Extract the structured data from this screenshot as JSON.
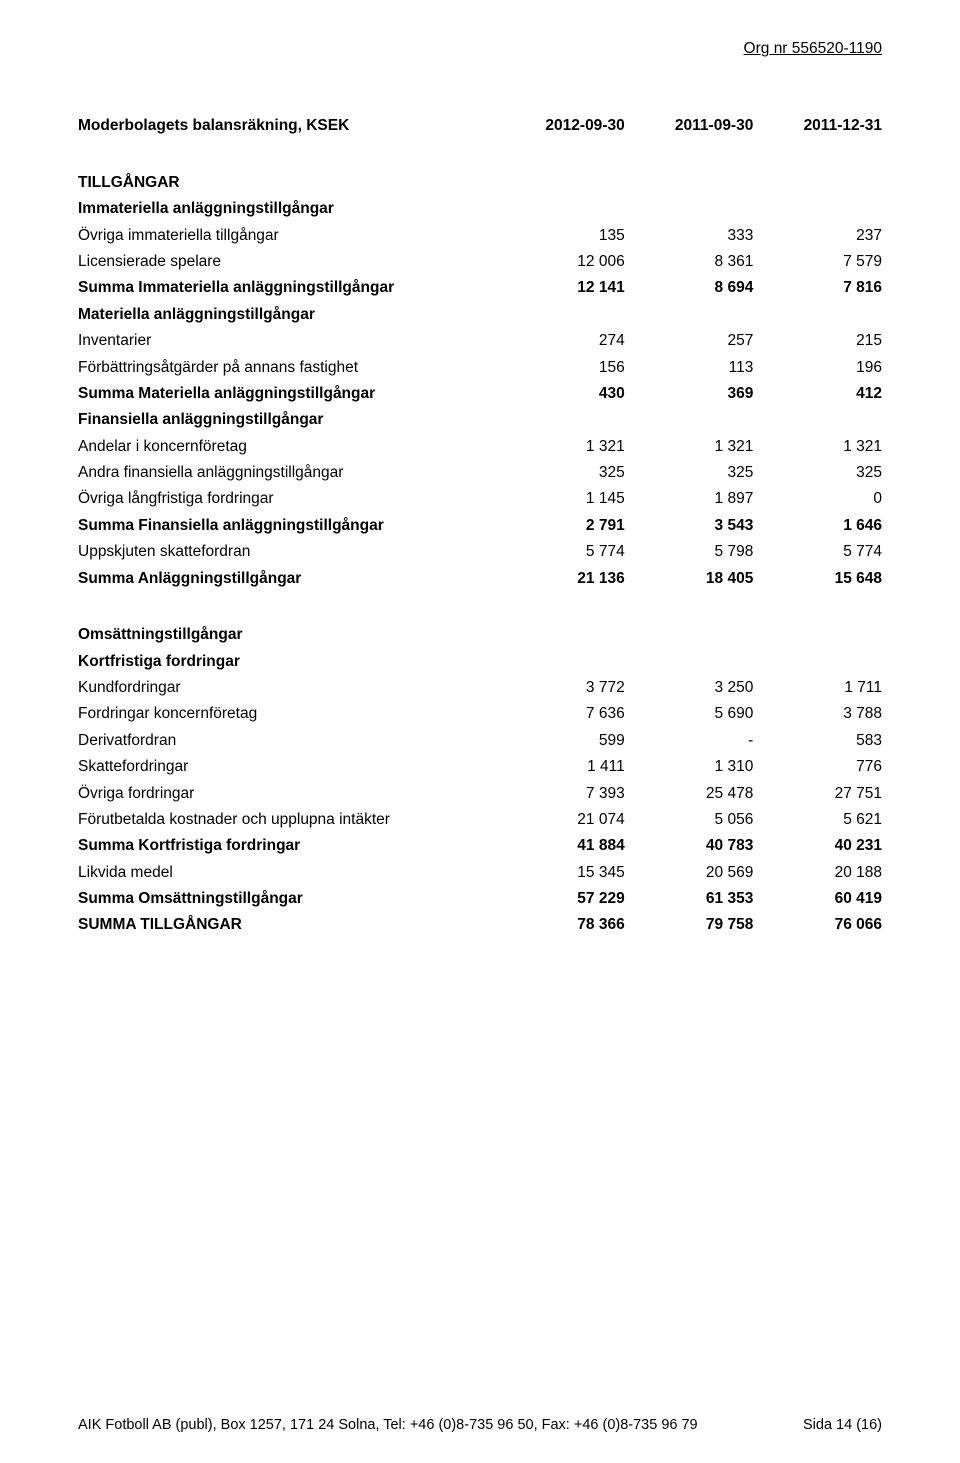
{
  "org_line": "Org nr 556520-1190",
  "header": {
    "title": "Moderbolagets balansräkning, KSEK",
    "col1": "2012-09-30",
    "col2": "2011-09-30",
    "col3": "2011-12-31"
  },
  "sections": [
    {
      "type": "bold_label",
      "label": "TILLGÅNGAR"
    },
    {
      "type": "bold_label",
      "label": "Immateriella anläggningstillgångar"
    },
    {
      "type": "row",
      "label": "Övriga immateriella tillgångar",
      "v1": "135",
      "v2": "333",
      "v3": "237"
    },
    {
      "type": "row",
      "label": "Licensierade spelare",
      "v1": "12 006",
      "v2": "8 361",
      "v3": "7 579"
    },
    {
      "type": "bold_row",
      "label": "Summa Immateriella anläggningstillgångar",
      "v1": "12 141",
      "v2": "8 694",
      "v3": "7 816"
    },
    {
      "type": "bold_label",
      "label": "Materiella anläggningstillgångar"
    },
    {
      "type": "row",
      "label": "Inventarier",
      "v1": "274",
      "v2": "257",
      "v3": "215"
    },
    {
      "type": "row",
      "label": "Förbättringsåtgärder på annans fastighet",
      "v1": "156",
      "v2": "113",
      "v3": "196"
    },
    {
      "type": "bold_row",
      "label": "Summa Materiella anläggningstillgångar",
      "v1": "430",
      "v2": "369",
      "v3": "412"
    },
    {
      "type": "bold_label",
      "label": "Finansiella anläggningstillgångar"
    },
    {
      "type": "row",
      "label": "Andelar i koncernföretag",
      "v1": "1 321",
      "v2": "1 321",
      "v3": "1 321"
    },
    {
      "type": "row",
      "label": "Andra finansiella anläggningstillgångar",
      "v1": "325",
      "v2": "325",
      "v3": "325"
    },
    {
      "type": "row",
      "label": "Övriga långfristiga fordringar",
      "v1": "1 145",
      "v2": "1 897",
      "v3": "0"
    },
    {
      "type": "bold_row",
      "label": "Summa Finansiella anläggningstillgångar",
      "v1": "2 791",
      "v2": "3 543",
      "v3": "1 646"
    },
    {
      "type": "row",
      "label": "Uppskjuten skattefordran",
      "v1": "5 774",
      "v2": "5 798",
      "v3": "5 774"
    },
    {
      "type": "bold_row",
      "label": "Summa Anläggningstillgångar",
      "v1": "21 136",
      "v2": "18 405",
      "v3": "15 648"
    },
    {
      "type": "spacer"
    },
    {
      "type": "bold_label",
      "label": "Omsättningstillgångar"
    },
    {
      "type": "bold_label",
      "label": "Kortfristiga fordringar"
    },
    {
      "type": "row",
      "label": "Kundfordringar",
      "v1": "3 772",
      "v2": "3 250",
      "v3": "1 711"
    },
    {
      "type": "row",
      "label": "Fordringar koncernföretag",
      "v1": "7 636",
      "v2": "5 690",
      "v3": "3 788"
    },
    {
      "type": "row",
      "label": "Derivatfordran",
      "v1": "599",
      "v2": "-",
      "v3": "583"
    },
    {
      "type": "row",
      "label": "Skattefordringar",
      "v1": "1 411",
      "v2": "1 310",
      "v3": "776"
    },
    {
      "type": "row",
      "label": "Övriga fordringar",
      "v1": "7 393",
      "v2": "25 478",
      "v3": "27 751"
    },
    {
      "type": "row",
      "label": "Förutbetalda kostnader och upplupna intäkter",
      "v1": "21 074",
      "v2": "5 056",
      "v3": "5 621"
    },
    {
      "type": "bold_row",
      "label": "Summa Kortfristiga fordringar",
      "v1": "41 884",
      "v2": "40 783",
      "v3": "40 231"
    },
    {
      "type": "row",
      "label": "Likvida medel",
      "v1": "15 345",
      "v2": "20 569",
      "v3": "20 188"
    },
    {
      "type": "bold_row",
      "label": "Summa Omsättningstillgångar",
      "v1": "57 229",
      "v2": "61 353",
      "v3": "60 419"
    },
    {
      "type": "bold_row",
      "label": "SUMMA TILLGÅNGAR",
      "v1": "78 366",
      "v2": "79 758",
      "v3": "76 066"
    }
  ],
  "footer": {
    "left": "AIK Fotboll AB (publ), Box 1257, 171 24 Solna, Tel: +46 (0)8-735 96 50, Fax: +46 (0)8-735 96 79",
    "right": "Sida 14 (16)"
  }
}
